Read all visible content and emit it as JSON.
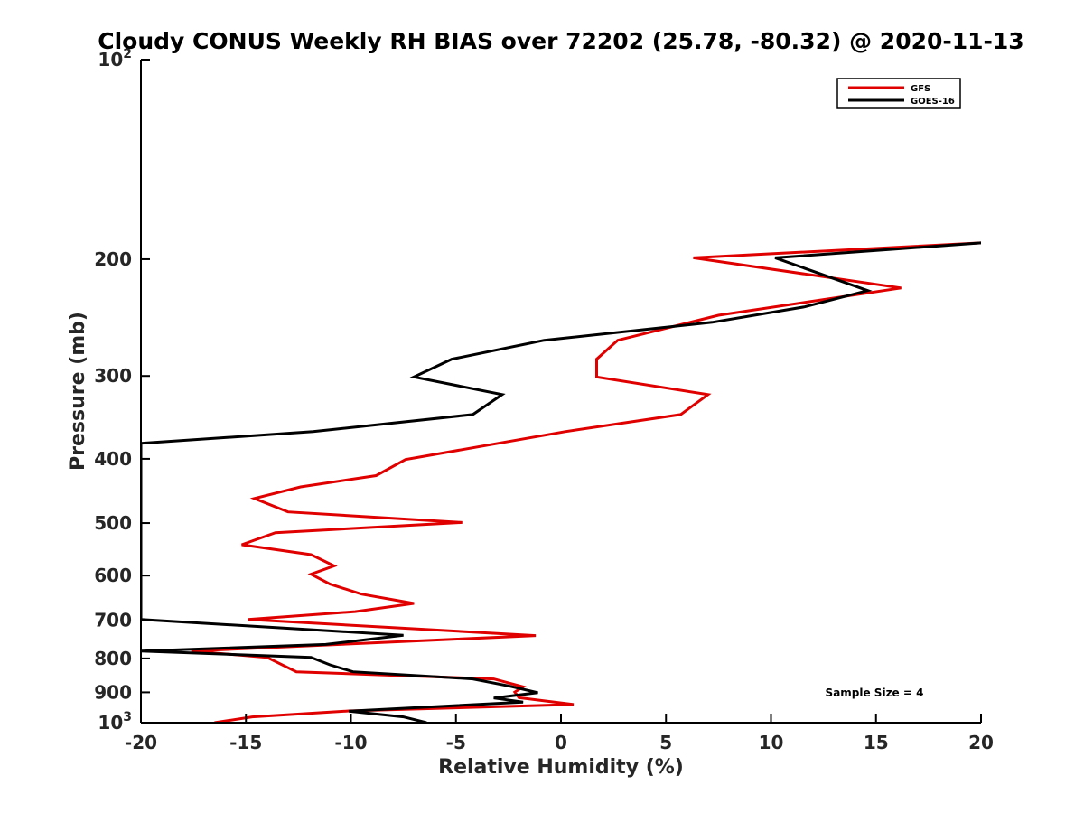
{
  "chart_data": {
    "type": "line",
    "title": "Cloudy CONUS Weekly RH BIAS over 72202 (25.78, -80.32) @ 2020-11-13",
    "xlabel": "Relative Humidity (%)",
    "ylabel": "Pressure (mb)",
    "xlim": [
      -20,
      20
    ],
    "ylim": [
      100,
      1000
    ],
    "y_scale": "log",
    "y_reversed": true,
    "grid": false,
    "legend_position": "top-right",
    "x_ticks": [
      "-20",
      "-15",
      "-10",
      "-5",
      "0",
      "5",
      "10",
      "15",
      "20"
    ],
    "y_tick_values": [
      100,
      200,
      300,
      400,
      500,
      600,
      700,
      800,
      900,
      1000
    ],
    "y_tick_labels": [
      {
        "value": 100,
        "base": "10",
        "exp": "2"
      },
      {
        "value": 200,
        "base": "200",
        "exp": ""
      },
      {
        "value": 300,
        "base": "300",
        "exp": ""
      },
      {
        "value": 400,
        "base": "400",
        "exp": ""
      },
      {
        "value": 500,
        "base": "500",
        "exp": ""
      },
      {
        "value": 600,
        "base": "600",
        "exp": ""
      },
      {
        "value": 700,
        "base": "700",
        "exp": ""
      },
      {
        "value": 800,
        "base": "800",
        "exp": ""
      },
      {
        "value": 900,
        "base": "900",
        "exp": ""
      },
      {
        "value": 1000,
        "base": "10",
        "exp": "3"
      }
    ],
    "annotation": "Sample Size = 4",
    "series": [
      {
        "name": "GFS",
        "color": "#e00000",
        "points": [
          [
            20,
            189
          ],
          [
            6.3,
            199
          ],
          [
            16.2,
            221
          ],
          [
            7.5,
            243
          ],
          [
            2.7,
            265
          ],
          [
            1.7,
            283
          ],
          [
            1.7,
            301
          ],
          [
            7.0,
            320
          ],
          [
            5.7,
            343
          ],
          [
            0.2,
            364
          ],
          [
            -7.4,
            401
          ],
          [
            -8.8,
            424
          ],
          [
            -12.4,
            441
          ],
          [
            -14.6,
            459
          ],
          [
            -13.0,
            481
          ],
          [
            -4.7,
            499
          ],
          [
            -13.6,
            517
          ],
          [
            -15.2,
            539
          ],
          [
            -11.9,
            558
          ],
          [
            -10.8,
            580
          ],
          [
            -11.9,
            597
          ],
          [
            -11.0,
            618
          ],
          [
            -9.5,
            640
          ],
          [
            -7.0,
            661
          ],
          [
            -9.8,
            680
          ],
          [
            -14.9,
            699
          ],
          [
            -1.2,
            739
          ],
          [
            -17.6,
            780
          ],
          [
            -14.0,
            797
          ],
          [
            -12.6,
            838
          ],
          [
            -3.2,
            859
          ],
          [
            -1.8,
            883
          ],
          [
            -2.2,
            899
          ],
          [
            -2.0,
            917
          ],
          [
            0.6,
            939
          ],
          [
            -10.1,
            960
          ],
          [
            -14.7,
            980
          ],
          [
            -16.5,
            1000
          ]
        ]
      },
      {
        "name": "GOES-16",
        "color": "#000000",
        "points": [
          [
            20,
            189
          ],
          [
            10.2,
            199
          ],
          [
            14.6,
            223
          ],
          [
            11.6,
            236
          ],
          [
            7.2,
            249
          ],
          [
            -0.8,
            265
          ],
          [
            -5.2,
            283
          ],
          [
            -7.0,
            301
          ],
          [
            -2.8,
            320
          ],
          [
            -4.2,
            343
          ],
          [
            -11.8,
            364
          ],
          [
            -20.0,
            379
          ],
          [
            -20.0,
            699
          ],
          [
            -7.5,
            738
          ],
          [
            -11.2,
            762
          ],
          [
            -20.0,
            780
          ],
          [
            -11.9,
            797
          ],
          [
            -11.0,
            818
          ],
          [
            -9.9,
            838
          ],
          [
            -4.2,
            859
          ],
          [
            -2.5,
            880
          ],
          [
            -1.1,
            901
          ],
          [
            -3.2,
            918
          ],
          [
            -1.8,
            931
          ],
          [
            -10.1,
            961
          ],
          [
            -7.5,
            980
          ],
          [
            -6.4,
            1000
          ]
        ]
      }
    ]
  }
}
